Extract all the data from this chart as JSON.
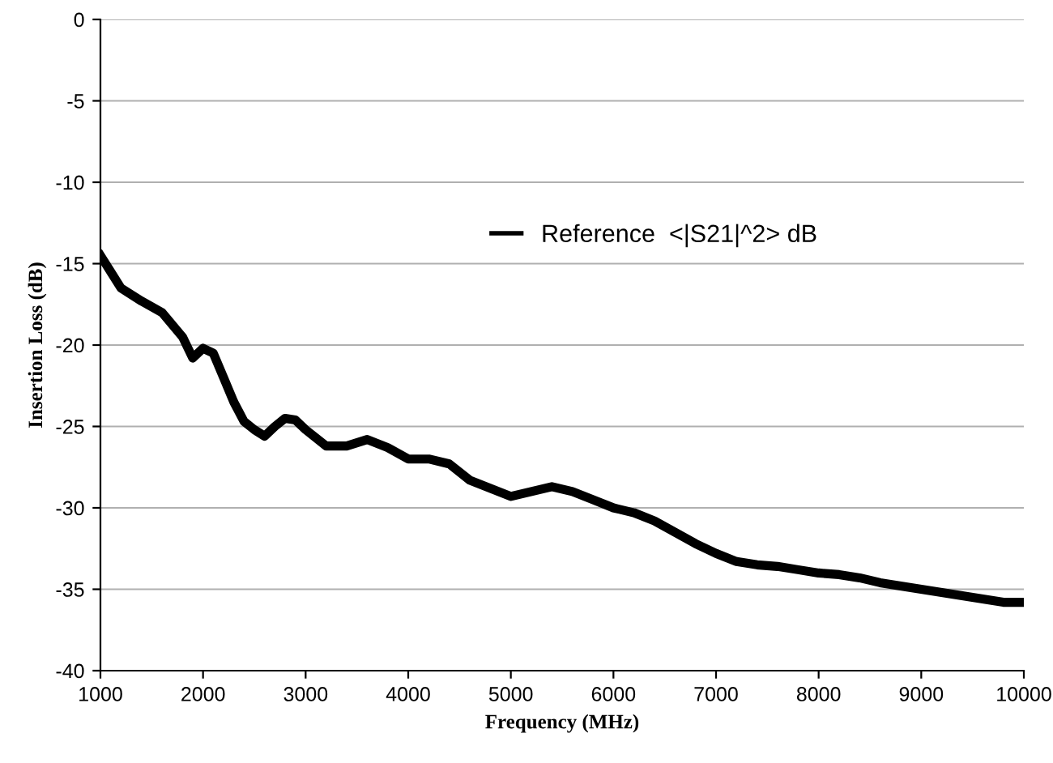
{
  "chart_data": {
    "type": "line",
    "xlabel": "Frequency (MHz)",
    "ylabel": "Insertion Loss (dB)",
    "x": [
      1000,
      1100,
      1200,
      1400,
      1600,
      1800,
      1900,
      2000,
      2100,
      2200,
      2300,
      2400,
      2500,
      2600,
      2700,
      2800,
      2900,
      3000,
      3200,
      3400,
      3600,
      3800,
      4000,
      4200,
      4400,
      4600,
      4800,
      5000,
      5200,
      5400,
      5600,
      5800,
      6000,
      6200,
      6400,
      6600,
      6800,
      7000,
      7200,
      7400,
      7600,
      7800,
      8000,
      8200,
      8400,
      8600,
      8800,
      9000,
      9200,
      9400,
      9600,
      9800,
      10000
    ],
    "series": [
      {
        "name": "Reference  <|S21|^2> dB",
        "color": "#000000",
        "values": [
          -14.5,
          -15.5,
          -16.5,
          -17.3,
          -18,
          -19.5,
          -20.8,
          -20.2,
          -20.5,
          -22,
          -23.5,
          -24.7,
          -25.2,
          -25.6,
          -25,
          -24.5,
          -24.6,
          -25.2,
          -26.2,
          -26.2,
          -25.8,
          -26.3,
          -27,
          -27,
          -27.3,
          -28.3,
          -28.8,
          -29.3,
          -29,
          -28.7,
          -29,
          -29.5,
          -30,
          -30.3,
          -30.8,
          -31.5,
          -32.2,
          -32.8,
          -33.3,
          -33.5,
          -33.6,
          -33.8,
          -34,
          -34.1,
          -34.3,
          -34.6,
          -34.8,
          -35,
          -35.2,
          -35.4,
          -35.6,
          -35.8,
          -35.8
        ]
      }
    ],
    "xlim": [
      1000,
      10000
    ],
    "xticks": [
      1000,
      2000,
      3000,
      4000,
      5000,
      6000,
      7000,
      8000,
      9000,
      10000
    ],
    "ylim": [
      -40,
      0
    ],
    "yticks": [
      -40,
      -35,
      -30,
      -25,
      -20,
      -15,
      -10,
      -5,
      0
    ],
    "grid": "y",
    "legend": "top",
    "marker": "none",
    "line_style": "solid"
  }
}
